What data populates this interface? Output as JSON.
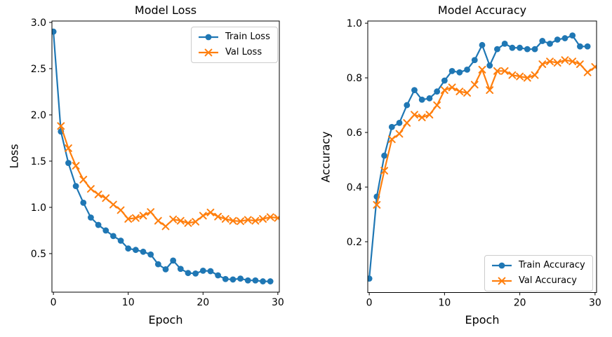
{
  "figure": {
    "background": "#ffffff"
  },
  "colors": {
    "train_series": "#1f77b4",
    "val_series": "#ff7f0e",
    "text": "#000000",
    "spines": "#000000",
    "legend_border": "#cccccc"
  },
  "chart_data": [
    {
      "id": "loss",
      "type": "line",
      "title": "Model Loss",
      "xlabel": "Epoch",
      "ylabel": "Loss",
      "xlim": [
        -0.2,
        30.2
      ],
      "ylim": [
        0.083,
        3.015
      ],
      "xticks": [
        0,
        10,
        20,
        30
      ],
      "xticklabels": [
        "0",
        "10",
        "20",
        "30"
      ],
      "yticks": [
        0.5,
        1.0,
        1.5,
        2.0,
        2.5,
        3.0
      ],
      "yticklabels": [
        "0.5",
        "1.0",
        "1.5",
        "2.0",
        "2.5",
        "3.0"
      ],
      "grid": false,
      "legend_position": "upper right",
      "series": [
        {
          "name": "Train Loss",
          "color": "#1f77b4",
          "marker": "circle",
          "x": [
            0,
            1,
            2,
            3,
            4,
            5,
            6,
            7,
            8,
            9,
            10,
            11,
            12,
            13,
            14,
            15,
            16,
            17,
            18,
            19,
            20,
            21,
            22,
            23,
            24,
            25,
            26,
            27,
            28,
            29
          ],
          "y": [
            2.9,
            1.82,
            1.48,
            1.23,
            1.05,
            0.89,
            0.81,
            0.75,
            0.69,
            0.64,
            0.555,
            0.54,
            0.52,
            0.49,
            0.385,
            0.33,
            0.425,
            0.335,
            0.29,
            0.285,
            0.315,
            0.31,
            0.265,
            0.225,
            0.22,
            0.23,
            0.21,
            0.21,
            0.2,
            0.2
          ]
        },
        {
          "name": "Val Loss",
          "color": "#ff7f0e",
          "marker": "x",
          "x": [
            1,
            2,
            3,
            4,
            5,
            6,
            7,
            8,
            9,
            10,
            11,
            12,
            13,
            14,
            15,
            16,
            17,
            18,
            19,
            20,
            21,
            22,
            23,
            24,
            25,
            26,
            27,
            28,
            29,
            30
          ],
          "y": [
            1.88,
            1.64,
            1.45,
            1.3,
            1.2,
            1.14,
            1.1,
            1.03,
            0.97,
            0.875,
            0.885,
            0.91,
            0.95,
            0.855,
            0.795,
            0.87,
            0.855,
            0.83,
            0.845,
            0.91,
            0.945,
            0.9,
            0.875,
            0.855,
            0.85,
            0.865,
            0.855,
            0.875,
            0.895,
            0.885
          ]
        }
      ]
    },
    {
      "id": "accuracy",
      "type": "line",
      "title": "Model Accuracy",
      "xlabel": "Epoch",
      "ylabel": "Accuracy",
      "xlim": [
        -0.2,
        30.2
      ],
      "ylim": [
        0.014,
        1.008
      ],
      "xticks": [
        0,
        10,
        20,
        30
      ],
      "xticklabels": [
        "0",
        "10",
        "20",
        "30"
      ],
      "yticks": [
        0.2,
        0.4,
        0.6,
        0.8,
        1.0
      ],
      "yticklabels": [
        "0.2",
        "0.4",
        "0.6",
        "0.8",
        "1.0"
      ],
      "grid": false,
      "legend_position": "lower right",
      "series": [
        {
          "name": "Train Accuracy",
          "color": "#1f77b4",
          "marker": "circle",
          "x": [
            0,
            1,
            2,
            3,
            4,
            5,
            6,
            7,
            8,
            9,
            10,
            11,
            12,
            13,
            14,
            15,
            16,
            17,
            18,
            19,
            20,
            21,
            22,
            23,
            24,
            25,
            26,
            27,
            28,
            29
          ],
          "y": [
            0.065,
            0.365,
            0.515,
            0.62,
            0.635,
            0.7,
            0.755,
            0.72,
            0.725,
            0.75,
            0.79,
            0.825,
            0.82,
            0.83,
            0.865,
            0.92,
            0.845,
            0.905,
            0.925,
            0.91,
            0.91,
            0.905,
            0.905,
            0.935,
            0.925,
            0.94,
            0.945,
            0.955,
            0.915,
            0.915
          ]
        },
        {
          "name": "Val Accuracy",
          "color": "#ff7f0e",
          "marker": "x",
          "x": [
            1,
            2,
            3,
            4,
            5,
            6,
            7,
            8,
            9,
            10,
            11,
            12,
            13,
            14,
            15,
            16,
            17,
            18,
            19,
            20,
            21,
            22,
            23,
            24,
            25,
            26,
            27,
            28,
            29,
            30
          ],
          "y": [
            0.335,
            0.46,
            0.575,
            0.595,
            0.635,
            0.665,
            0.655,
            0.665,
            0.7,
            0.755,
            0.765,
            0.75,
            0.745,
            0.775,
            0.83,
            0.755,
            0.825,
            0.825,
            0.81,
            0.805,
            0.8,
            0.81,
            0.85,
            0.86,
            0.855,
            0.865,
            0.86,
            0.85,
            0.82,
            0.84
          ]
        }
      ]
    }
  ]
}
